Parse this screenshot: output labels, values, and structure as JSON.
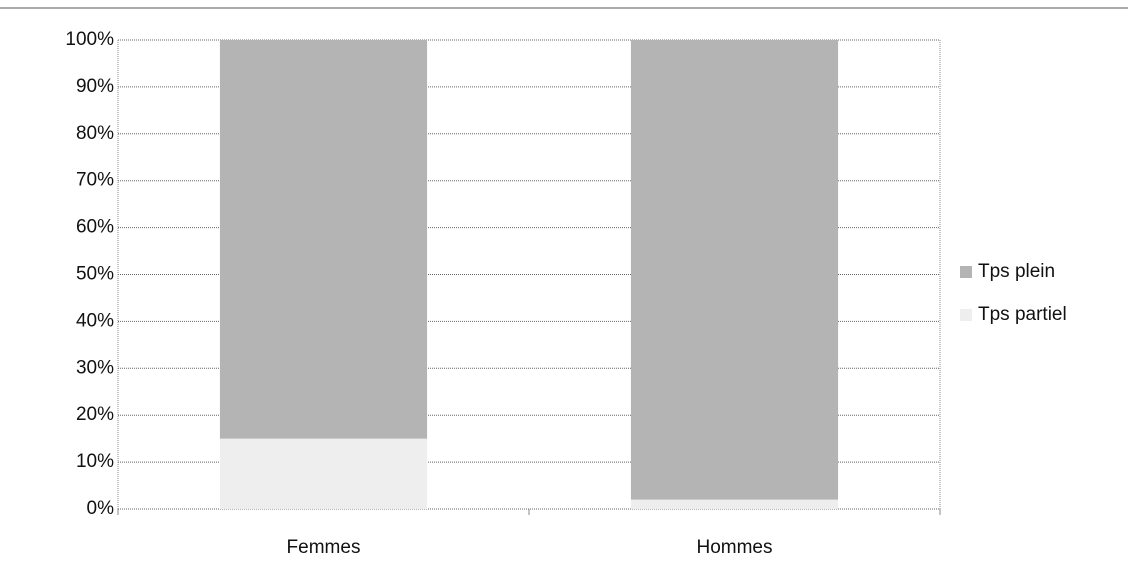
{
  "chart_data": {
    "type": "bar",
    "stacked": true,
    "categories": [
      "Femmes",
      "Hommes"
    ],
    "series": [
      {
        "name": "Tps plein",
        "color": "#b4b4b4",
        "values": [
          85,
          98
        ]
      },
      {
        "name": "Tps partiel",
        "color": "#eeeeee",
        "values": [
          15,
          2
        ]
      }
    ],
    "ylim": [
      0,
      100
    ],
    "yticks": [
      {
        "value": 0,
        "label": "0%"
      },
      {
        "value": 10,
        "label": "10%"
      },
      {
        "value": 20,
        "label": "20%"
      },
      {
        "value": 30,
        "label": "30%"
      },
      {
        "value": 40,
        "label": "40%"
      },
      {
        "value": 50,
        "label": "50%"
      },
      {
        "value": 60,
        "label": "60%"
      },
      {
        "value": 70,
        "label": "70%"
      },
      {
        "value": 80,
        "label": "80%"
      },
      {
        "value": 90,
        "label": "90%"
      },
      {
        "value": 100,
        "label": "100%"
      }
    ],
    "grid": true,
    "legend": "right"
  }
}
